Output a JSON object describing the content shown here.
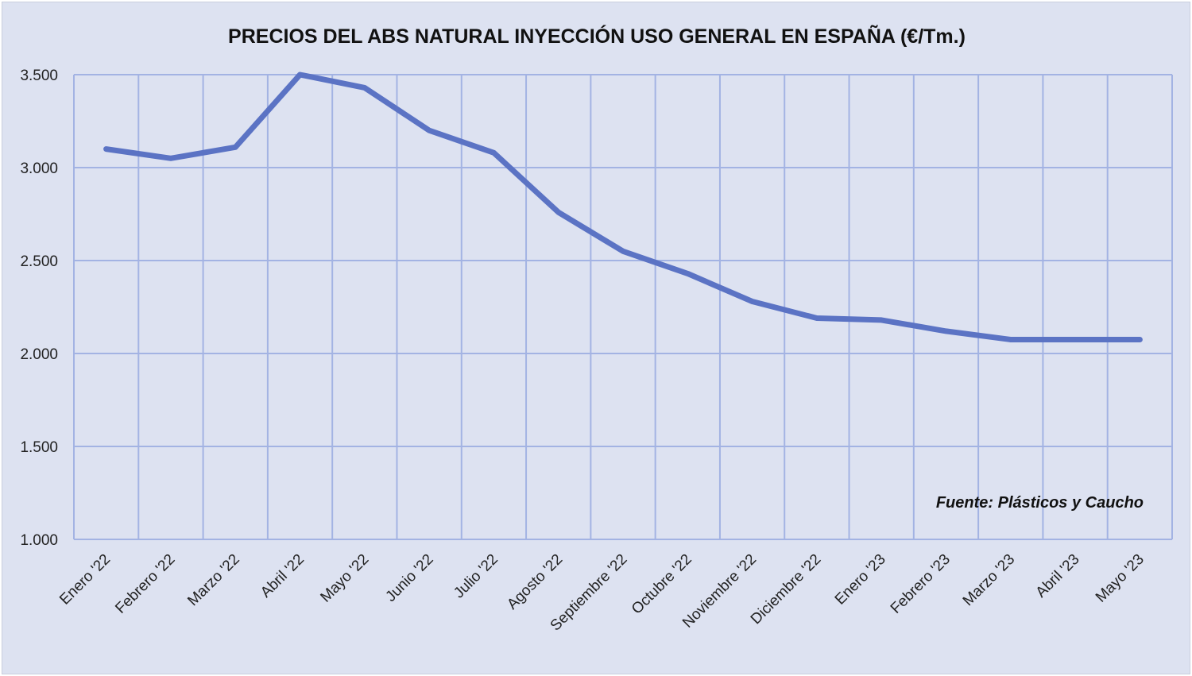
{
  "chart_data": {
    "type": "line",
    "title": "PRECIOS DEL ABS NATURAL INYECCIÓN USO GENERAL EN ESPAÑA (€/Tm.)",
    "xlabel": "",
    "ylabel": "",
    "categories": [
      "Enero '22",
      "Febrero '22",
      "Marzo '22",
      "Abril '22",
      "Mayo '22",
      "Junio '22",
      "Julio '22",
      "Agosto '22",
      "Septiembre '22",
      "Octubre '22",
      "Noviembre '22",
      "Diciembre '22",
      "Enero '23",
      "Febrero '23",
      "Marzo '23",
      "Abril '23",
      "Mayo '23"
    ],
    "series": [
      {
        "name": "",
        "values": [
          3100,
          3050,
          3110,
          3500,
          3430,
          3200,
          3080,
          2760,
          2550,
          2430,
          2280,
          2190,
          2180,
          2120,
          2075,
          2075,
          2075
        ],
        "color": "#5b73c4"
      }
    ],
    "ylim": [
      1000,
      3500
    ],
    "yticks": [
      1000,
      1500,
      2000,
      2500,
      3000,
      3500
    ],
    "ytick_labels": [
      "1.000",
      "1.500",
      "2.000",
      "2.500",
      "3.000",
      "3.500"
    ],
    "grid": true,
    "legend": "none",
    "source_note": "Fuente: Plásticos y Caucho",
    "colors": {
      "background": "#dde2f1",
      "grid": "#a3b3e3",
      "line": "#5b73c4"
    }
  }
}
